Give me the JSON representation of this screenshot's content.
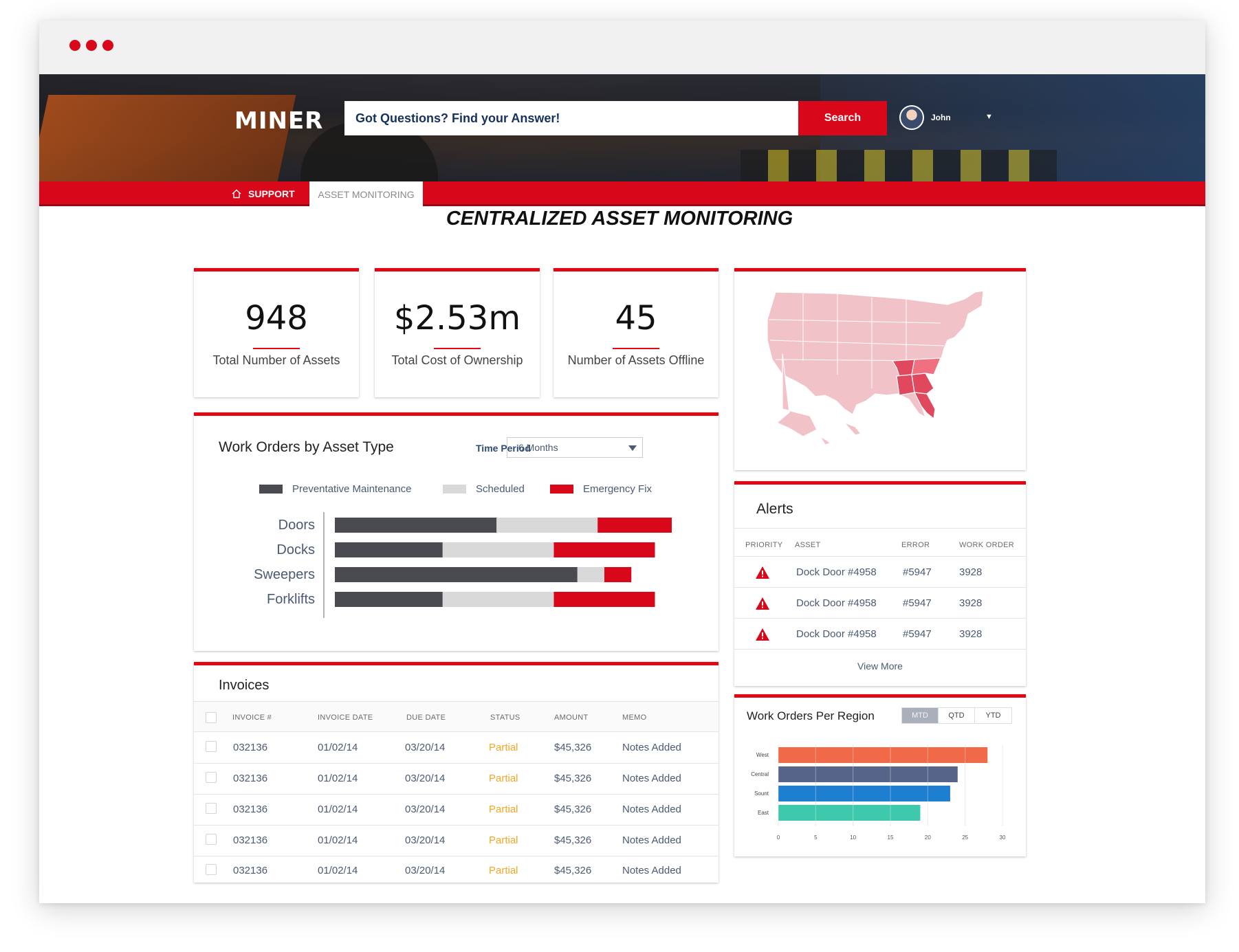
{
  "header": {
    "logo": "MINER",
    "search_placeholder": "Got Questions? Find your Answer!",
    "search_button": "Search",
    "user_name": "John"
  },
  "nav": {
    "home_label": "SUPPORT",
    "active_label": "ASSET MONITORING"
  },
  "page": {
    "title": "CENTRALIZED ASSET MONITORING"
  },
  "kpis": [
    {
      "value": "948",
      "label": "Total Number of Assets"
    },
    {
      "value": "$2.53m",
      "label": "Total Cost of Ownership"
    },
    {
      "value": "45",
      "label": "Number of Assets Offline"
    }
  ],
  "work_orders": {
    "title": "Work Orders by Asset Type",
    "time_period_label": "Time Period",
    "time_period_value": "6 Months",
    "legend": [
      "Preventative Maintenance",
      "Scheduled",
      "Emergency Fix"
    ],
    "colors": {
      "preventative": "#4a4b50",
      "scheduled": "#d9d9d9",
      "emergency": "#d8071a"
    }
  },
  "chart_data": [
    {
      "type": "bar",
      "orientation": "horizontal",
      "stacked": true,
      "title": "Work Orders by Asset Type",
      "categories": [
        "Doors",
        "Docks",
        "Sweepers",
        "Forklifts"
      ],
      "series": [
        {
          "name": "Preventative Maintenance",
          "values": [
            48,
            32,
            72,
            32
          ]
        },
        {
          "name": "Scheduled",
          "values": [
            30,
            33,
            8,
            33
          ]
        },
        {
          "name": "Emergency Fix",
          "values": [
            22,
            30,
            8,
            30
          ]
        }
      ]
    },
    {
      "type": "bar",
      "orientation": "horizontal",
      "title": "Work Orders Per Region",
      "categories": [
        "West",
        "Central",
        "Sount",
        "East"
      ],
      "values": [
        28,
        24,
        23,
        19
      ],
      "colors": [
        "#f06a4a",
        "#57648a",
        "#1e7fd0",
        "#3ec9ad"
      ],
      "xticks": [
        "0",
        "5",
        "10",
        "15",
        "20",
        "25",
        "30"
      ],
      "xlim": [
        0,
        30
      ],
      "grid": true
    }
  ],
  "alerts": {
    "title": "Alerts",
    "columns": [
      "PRIORITY",
      "ASSET",
      "ERROR",
      "WORK ORDER"
    ],
    "rows": [
      {
        "asset": "Dock Door #4958",
        "error": "#5947",
        "work_order": "3928"
      },
      {
        "asset": "Dock Door #4958",
        "error": "#5947",
        "work_order": "3928"
      },
      {
        "asset": "Dock Door #4958",
        "error": "#5947",
        "work_order": "3928"
      }
    ],
    "view_more": "View More"
  },
  "invoices": {
    "title": "Invoices",
    "columns": [
      "INVOICE #",
      "INVOICE DATE",
      "DUE DATE",
      "STATUS",
      "AMOUNT",
      "MEMO"
    ],
    "rows": [
      {
        "invoice": "032136",
        "invoice_date": "01/02/14",
        "due_date": "03/20/14",
        "status": "Partial",
        "amount": "$45,326",
        "memo": "Notes Added"
      },
      {
        "invoice": "032136",
        "invoice_date": "01/02/14",
        "due_date": "03/20/14",
        "status": "Partial",
        "amount": "$45,326",
        "memo": "Notes Added"
      },
      {
        "invoice": "032136",
        "invoice_date": "01/02/14",
        "due_date": "03/20/14",
        "status": "Partial",
        "amount": "$45,326",
        "memo": "Notes Added"
      },
      {
        "invoice": "032136",
        "invoice_date": "01/02/14",
        "due_date": "03/20/14",
        "status": "Partial",
        "amount": "$45,326",
        "memo": "Notes Added"
      },
      {
        "invoice": "032136",
        "invoice_date": "01/02/14",
        "due_date": "03/20/14",
        "status": "Partial",
        "amount": "$45,326",
        "memo": "Notes Added"
      }
    ]
  },
  "region": {
    "title": "Work Orders Per Region",
    "tabs": [
      "MTD",
      "QTD",
      "YTD"
    ],
    "active_tab": "MTD"
  },
  "colors": {
    "brand_red": "#d8071a",
    "status_partial": "#f5a623"
  }
}
